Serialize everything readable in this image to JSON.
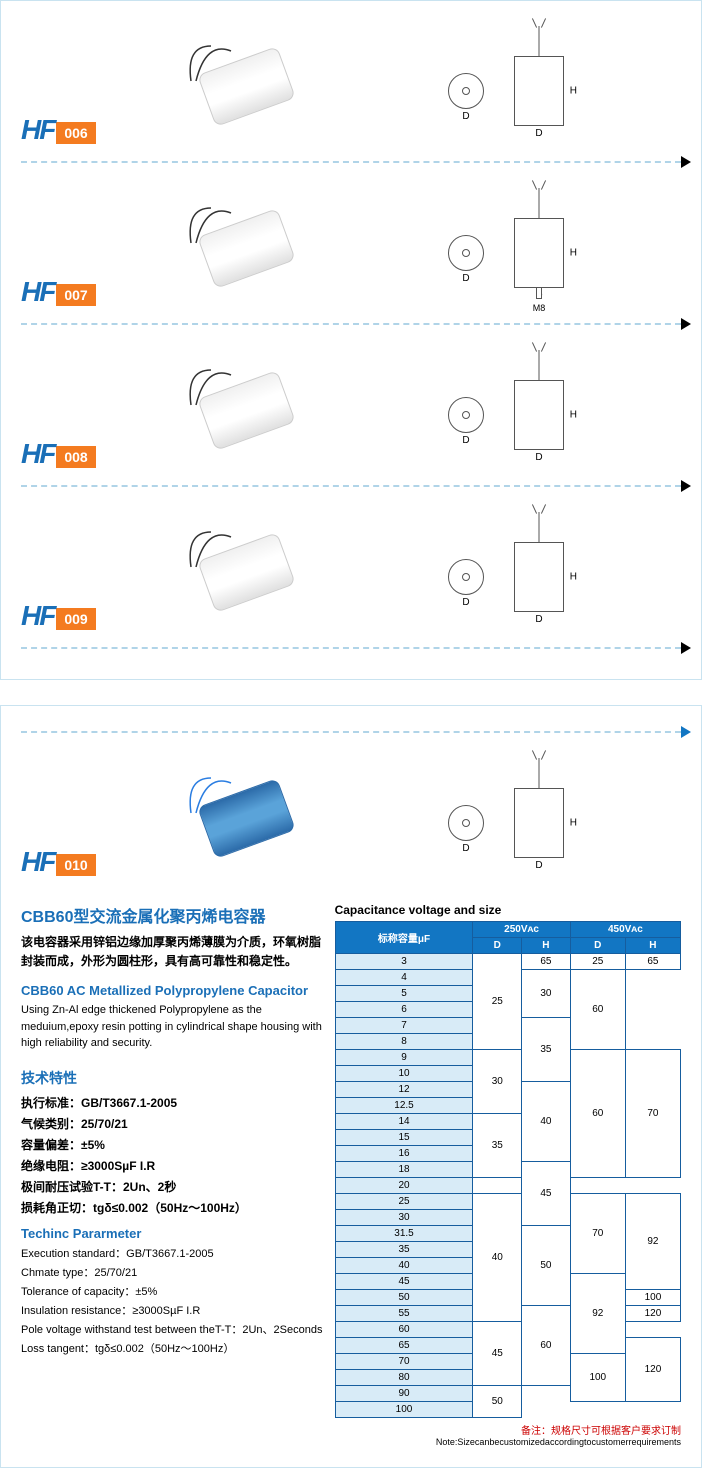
{
  "products": [
    {
      "hf": "HF",
      "num": "006",
      "show_bolt": false,
      "show_m8": false
    },
    {
      "hf": "HF",
      "num": "007",
      "show_bolt": true,
      "show_m8": true
    },
    {
      "hf": "HF",
      "num": "008",
      "show_bolt": false,
      "show_m8": false
    },
    {
      "hf": "HF",
      "num": "009",
      "show_bolt": false,
      "show_m8": false
    }
  ],
  "hf010": {
    "hf": "HF",
    "num": "010"
  },
  "diagram": {
    "D": "D",
    "H": "H",
    "M8": "M8"
  },
  "desc": {
    "title_cn": "CBB60型交流金属化聚丙烯电容器",
    "body_cn": "该电容器采用锌铝边缘加厚聚丙烯薄膜为介质，环氧树脂封装而成，外形为圆柱形，具有高可靠性和稳定性。",
    "title_en": "CBB60 AC Metallized Polypropylene Capacitor",
    "body_en": "Using Zn-Al edge thickened Polypropylene as the meduium,epoxy resin potting in cylindrical shape housing with high reliability and security."
  },
  "tech": {
    "h_cn": "技术特性",
    "std": "执行标准：GB/T3667.1-2005",
    "climate": "气候类别：25/70/21",
    "tol": "容量偏差：±5%",
    "ir": "绝缘电阻：≥3000S&micro;F I.R",
    "pole": "极间耐压试验T-T：2Un、2秒",
    "loss": "损耗角正切：tgδ≤0.002（50Hz～100Hz）",
    "h_en": "Techinc Pararmeter",
    "std_en": "Execution standard：GB/T3667.1-2005",
    "climate_en": "Chmate type：25/70/21",
    "tol_en": "Tolerance of capacity：±5%",
    "ir_en": "Insulation resistance：≥3000S&micro;F I.R",
    "pole_en": "Pole voltage withstand test between theT-T：2Un、2Seconds",
    "loss_en": "Loss tangent：tgδ≤0.002（50Hz～100Hz）"
  },
  "table": {
    "title": "Capacitance voltage and size",
    "head_cap": "标称容量μF",
    "v250": "250Vᴀᴄ",
    "v450": "450Vᴀᴄ",
    "D": "D",
    "H": "H",
    "rows": [
      {
        "c": "3",
        "d1": "25",
        "h1": "65",
        "d2": "25",
        "h2": "65",
        "rs1": 6,
        "rs3": 1,
        "rs4": 1
      },
      {
        "c": "4",
        "d2": "30",
        "h2": "60",
        "rs3": 3,
        "rs4": 5
      },
      {
        "c": "5"
      },
      {
        "c": "6"
      },
      {
        "c": "7",
        "d2": "35",
        "rs3": 4
      },
      {
        "c": "8"
      },
      {
        "c": "9",
        "d1": "30",
        "h1": "60",
        "rs1": 4,
        "rs2": 8,
        "h2": "70",
        "rs4": 8
      },
      {
        "c": "10"
      },
      {
        "c": "12",
        "d2": "40",
        "rs3": 5
      },
      {
        "c": "12.5"
      },
      {
        "c": "14",
        "d1": "35",
        "rs1": 4
      },
      {
        "c": "15"
      },
      {
        "c": "16"
      },
      {
        "c": "18",
        "d2": "45",
        "rs3": 4
      },
      {
        "c": "20"
      },
      {
        "c": "25",
        "d1": "40",
        "h1": "70",
        "rs1": 8,
        "rs2": 5,
        "h2": "92",
        "rs4": 6
      },
      {
        "c": "30"
      },
      {
        "c": "31.5",
        "d2": "50",
        "rs3": 5
      },
      {
        "c": "35"
      },
      {
        "c": "40"
      },
      {
        "c": "45",
        "h1": "92",
        "rs2": 5
      },
      {
        "c": "50",
        "h2": "100",
        "rs4": 1
      },
      {
        "c": "55",
        "d2": "60",
        "rs3": 5,
        "h2": "120",
        "rs4": 1
      },
      {
        "c": "60",
        "d1": "45",
        "rs1": 4
      },
      {
        "c": "65",
        "h2": "120",
        "rs4": 4
      },
      {
        "c": "70",
        "h1": "100",
        "rs2": 3
      },
      {
        "c": "80"
      },
      {
        "c": "90",
        "d1": "50",
        "rs1": 2
      },
      {
        "c": "100"
      }
    ],
    "footer_cn": "备注：规格尺寸可根据客户要求订制",
    "footer_en": "Note:Sizecanbecustomizedaccordingtocustomerrequirements"
  }
}
